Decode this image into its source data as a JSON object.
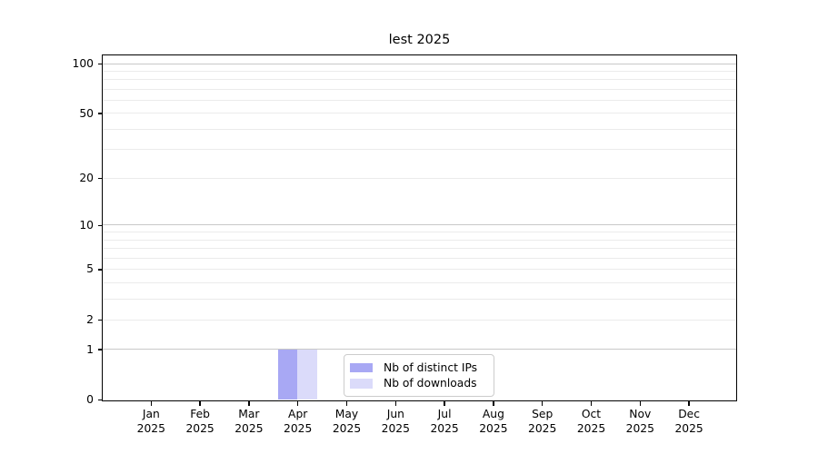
{
  "chart_data": {
    "type": "bar",
    "title": "lest 2025",
    "categories": [
      "Jan",
      "Feb",
      "Mar",
      "Apr",
      "May",
      "Jun",
      "Jul",
      "Aug",
      "Sep",
      "Oct",
      "Nov",
      "Dec"
    ],
    "x_year_label": "2025",
    "series": [
      {
        "name": "Nb of distinct IPs",
        "color": "#a8a8f4",
        "values": [
          0,
          0,
          0,
          1,
          0,
          0,
          0,
          0,
          0,
          0,
          0,
          0
        ]
      },
      {
        "name": "Nb of downloads",
        "color": "#dbdbfa",
        "values": [
          0,
          0,
          0,
          1,
          0,
          0,
          0,
          0,
          0,
          0,
          0,
          0
        ]
      }
    ],
    "yscale": "log1p",
    "ylim": [
      0,
      112
    ],
    "yticks": [
      0,
      1,
      2,
      5,
      10,
      20,
      50,
      100
    ],
    "grid_major_lines": [
      1,
      10,
      100
    ],
    "grid_minor_lines": [
      2,
      3,
      4,
      5,
      6,
      7,
      8,
      9,
      20,
      30,
      40,
      50,
      60,
      70,
      80,
      90
    ],
    "grid": true,
    "legend_position": "inside-bottom-center"
  },
  "colors": {
    "background": "#ffffff",
    "spine": "#000000",
    "grid_major": "#c8c8c8",
    "grid_minor": "#ebebeb",
    "legend_border": "#cccccc",
    "text": "#000000"
  }
}
